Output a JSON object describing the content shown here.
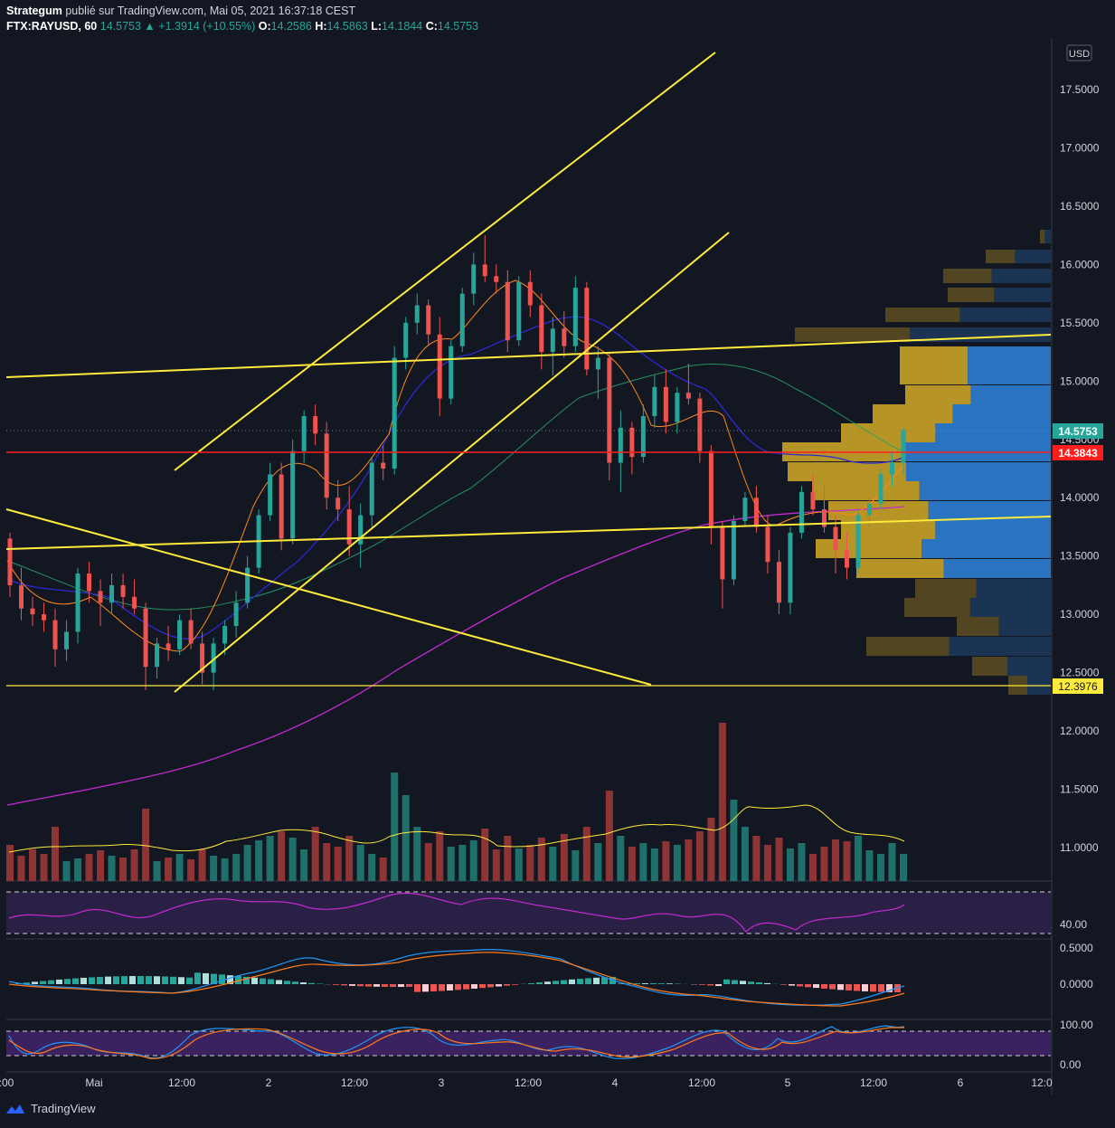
{
  "header": {
    "author": "Strategum",
    "published": "publié sur TradingView.com, Mai 05, 2021 16:37:18 CEST",
    "symbol": "FTX:RAYUSD, 60",
    "last": "14.5753",
    "change": "▲ +1.3914 (+10.55%)",
    "o_label": "O:",
    "o": "14.2586",
    "h_label": "H:",
    "h": "14.5863",
    "l_label": "L:",
    "l": "14.1844",
    "c_label": "C:",
    "c": "14.5753"
  },
  "footer": {
    "brand": "TradingView",
    "logo_icon": "tradingview-logo-icon"
  },
  "colors": {
    "bull": "#26a69a",
    "bear": "#ef5350",
    "trendline": "#ffeb3b",
    "ma200": "#c22ad1",
    "volume_bull": "#26a69a",
    "volume_bear": "#ef5350"
  },
  "chart_data": {
    "type": "candlestick",
    "currency_badge": "USD",
    "y_ticks": [
      "17.5000",
      "17.0000",
      "16.5000",
      "16.0000",
      "15.5000",
      "15.0000",
      "14.5000",
      "14.0000",
      "13.5000",
      "13.0000",
      "12.5000",
      "12.0000",
      "11.5000",
      "11.0000"
    ],
    "x_ticks": [
      ":00",
      "Mai",
      "12:00",
      "2",
      "12:00",
      "3",
      "12:00",
      "4",
      "12:00",
      "5",
      "12:00",
      "6",
      "12:0"
    ],
    "price_labels": [
      {
        "value": "14.5753",
        "kind": "last_price",
        "color": "#26a69a"
      },
      {
        "value": "14.3843",
        "kind": "horizontal_line",
        "color": "#ff1e1e"
      },
      {
        "value": "12.3976",
        "kind": "horizontal_line",
        "color": "#ffeb3b"
      }
    ],
    "candles_approx": [
      [
        13.65,
        13.7,
        13.15,
        13.25
      ],
      [
        13.25,
        13.4,
        12.95,
        13.05
      ],
      [
        13.05,
        13.15,
        12.9,
        13.0
      ],
      [
        13.0,
        13.1,
        12.85,
        12.95
      ],
      [
        12.95,
        13.05,
        12.55,
        12.7
      ],
      [
        12.7,
        12.95,
        12.6,
        12.85
      ],
      [
        12.85,
        13.4,
        12.75,
        13.35
      ],
      [
        13.35,
        13.45,
        13.1,
        13.2
      ],
      [
        13.2,
        13.3,
        12.9,
        13.1
      ],
      [
        13.1,
        13.35,
        13.0,
        13.25
      ],
      [
        13.25,
        13.35,
        13.05,
        13.15
      ],
      [
        13.15,
        13.3,
        13.0,
        13.05
      ],
      [
        13.05,
        13.1,
        12.35,
        12.55
      ],
      [
        12.55,
        12.8,
        12.45,
        12.75
      ],
      [
        12.75,
        12.9,
        12.6,
        12.7
      ],
      [
        12.7,
        13.0,
        12.65,
        12.95
      ],
      [
        12.95,
        13.05,
        12.7,
        12.75
      ],
      [
        12.75,
        12.85,
        12.4,
        12.5
      ],
      [
        12.5,
        12.8,
        12.35,
        12.75
      ],
      [
        12.75,
        12.95,
        12.65,
        12.9
      ],
      [
        12.9,
        13.2,
        12.8,
        13.1
      ],
      [
        13.1,
        13.5,
        13.05,
        13.4
      ],
      [
        13.4,
        13.9,
        13.35,
        13.85
      ],
      [
        13.85,
        14.3,
        13.8,
        14.2
      ],
      [
        14.2,
        14.3,
        13.55,
        13.65
      ],
      [
        13.65,
        14.5,
        13.6,
        14.4
      ],
      [
        14.4,
        14.75,
        14.3,
        14.7
      ],
      [
        14.7,
        14.8,
        14.45,
        14.55
      ],
      [
        14.55,
        14.65,
        13.9,
        14.0
      ],
      [
        14.0,
        14.15,
        13.8,
        13.9
      ],
      [
        13.9,
        14.1,
        13.5,
        13.6
      ],
      [
        13.6,
        13.95,
        13.4,
        13.85
      ],
      [
        13.85,
        14.35,
        13.75,
        14.3
      ],
      [
        14.3,
        14.45,
        14.15,
        14.25
      ],
      [
        14.25,
        15.3,
        14.2,
        15.2
      ],
      [
        15.2,
        15.55,
        15.1,
        15.5
      ],
      [
        15.5,
        15.75,
        15.4,
        15.65
      ],
      [
        15.65,
        15.7,
        15.3,
        15.4
      ],
      [
        15.4,
        15.55,
        14.7,
        14.85
      ],
      [
        14.85,
        15.35,
        14.8,
        15.3
      ],
      [
        15.3,
        15.8,
        15.25,
        15.75
      ],
      [
        15.75,
        16.1,
        15.65,
        16.0
      ],
      [
        16.0,
        16.25,
        15.85,
        15.9
      ],
      [
        15.9,
        16.0,
        15.75,
        15.85
      ],
      [
        15.85,
        15.95,
        15.25,
        15.35
      ],
      [
        15.35,
        15.9,
        15.3,
        15.85
      ],
      [
        15.85,
        15.95,
        15.55,
        15.65
      ],
      [
        15.65,
        15.75,
        15.1,
        15.25
      ],
      [
        15.25,
        15.55,
        15.05,
        15.45
      ],
      [
        15.45,
        15.6,
        15.2,
        15.3
      ],
      [
        15.3,
        15.9,
        15.25,
        15.8
      ],
      [
        15.8,
        15.85,
        15.05,
        15.1
      ],
      [
        15.1,
        15.3,
        14.85,
        15.2
      ],
      [
        15.2,
        15.25,
        14.15,
        14.3
      ],
      [
        14.3,
        14.75,
        14.05,
        14.6
      ],
      [
        14.6,
        14.65,
        14.2,
        14.35
      ],
      [
        14.35,
        14.8,
        14.3,
        14.7
      ],
      [
        14.7,
        15.05,
        14.6,
        14.95
      ],
      [
        14.95,
        15.1,
        14.55,
        14.65
      ],
      [
        14.65,
        14.95,
        14.55,
        14.9
      ],
      [
        14.9,
        15.15,
        14.8,
        14.85
      ],
      [
        14.85,
        14.9,
        14.3,
        14.4
      ],
      [
        14.4,
        14.45,
        13.6,
        13.75
      ],
      [
        13.75,
        13.8,
        13.05,
        13.3
      ],
      [
        13.3,
        13.85,
        13.25,
        13.8
      ],
      [
        13.8,
        14.05,
        13.75,
        14.0
      ],
      [
        14.0,
        14.1,
        13.7,
        13.75
      ],
      [
        13.75,
        13.85,
        13.35,
        13.45
      ],
      [
        13.45,
        13.55,
        13.0,
        13.1
      ],
      [
        13.1,
        13.75,
        13.0,
        13.7
      ],
      [
        13.7,
        14.1,
        13.65,
        14.05
      ],
      [
        14.05,
        14.2,
        13.85,
        13.9
      ],
      [
        13.9,
        14.1,
        13.7,
        13.75
      ],
      [
        13.75,
        13.85,
        13.35,
        13.55
      ],
      [
        13.55,
        13.7,
        13.3,
        13.4
      ],
      [
        13.4,
        13.9,
        13.35,
        13.85
      ],
      [
        13.85,
        14.0,
        13.75,
        13.95
      ],
      [
        13.95,
        14.25,
        13.9,
        14.2
      ],
      [
        14.2,
        14.4,
        14.1,
        14.3
      ],
      [
        14.3,
        14.6,
        14.2,
        14.58
      ]
    ]
  },
  "rsi": {
    "tick": "40.00"
  },
  "macd": {
    "ticks": [
      "0.5000",
      "0.0000"
    ]
  },
  "stoch": {
    "ticks": [
      "100.00",
      "0.00"
    ]
  }
}
